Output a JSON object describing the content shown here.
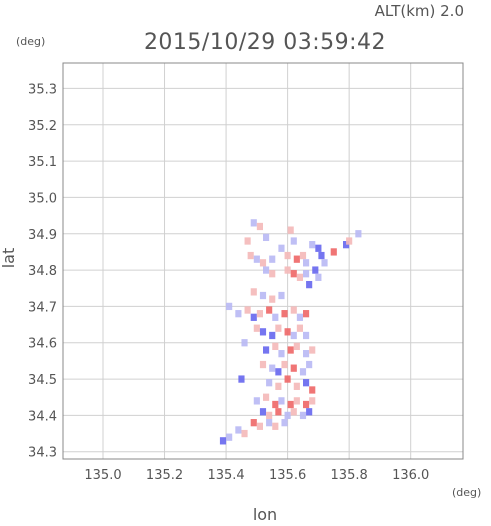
{
  "header": {
    "altitude_label": "ALT(km) 2.0",
    "timestamp": "2015/10/29 03:59:42"
  },
  "chart_data": {
    "type": "heatmap",
    "xlabel": "lon",
    "ylabel": "lat",
    "x_unit": "(deg)",
    "y_unit": "(deg)",
    "xlim": [
      134.87,
      136.17
    ],
    "ylim": [
      34.28,
      35.37
    ],
    "x_ticks": [
      135.0,
      135.2,
      135.4,
      135.6,
      135.8,
      136.0
    ],
    "y_ticks": [
      34.3,
      34.4,
      34.5,
      34.6,
      34.7,
      34.8,
      34.9,
      35.0,
      35.1,
      35.2,
      35.3
    ],
    "x_tick_labels": [
      "135.0",
      "135.2",
      "135.4",
      "135.6",
      "135.8",
      "136.0"
    ],
    "y_tick_labels": [
      "34.3",
      "34.4",
      "34.5",
      "34.6",
      "34.7",
      "34.8",
      "34.9",
      "35.0",
      "35.1",
      "35.2",
      "35.3"
    ],
    "grid": true,
    "colors": {
      "positive": "#ee6666",
      "negative": "#6666ee",
      "positive_light": "#f4b8b8",
      "negative_light": "#b8b8f4",
      "axes": "#888888",
      "grid": "#d0d0d0"
    },
    "cells": [
      {
        "lon": 135.49,
        "lat": 34.93,
        "v": -1
      },
      {
        "lon": 135.51,
        "lat": 34.92,
        "v": 1
      },
      {
        "lon": 135.53,
        "lat": 34.89,
        "v": -1
      },
      {
        "lon": 135.47,
        "lat": 34.88,
        "v": 1
      },
      {
        "lon": 135.61,
        "lat": 34.91,
        "v": 1
      },
      {
        "lon": 135.62,
        "lat": 34.88,
        "v": -1
      },
      {
        "lon": 135.58,
        "lat": 34.86,
        "v": -1
      },
      {
        "lon": 135.68,
        "lat": 34.87,
        "v": -1
      },
      {
        "lon": 135.7,
        "lat": 34.86,
        "v": -2
      },
      {
        "lon": 135.79,
        "lat": 34.87,
        "v": -2
      },
      {
        "lon": 135.8,
        "lat": 34.88,
        "v": 1
      },
      {
        "lon": 135.83,
        "lat": 34.9,
        "v": -1
      },
      {
        "lon": 135.48,
        "lat": 34.84,
        "v": 1
      },
      {
        "lon": 135.5,
        "lat": 34.83,
        "v": -1
      },
      {
        "lon": 135.52,
        "lat": 34.82,
        "v": 1
      },
      {
        "lon": 135.55,
        "lat": 34.83,
        "v": -1
      },
      {
        "lon": 135.6,
        "lat": 34.84,
        "v": 1
      },
      {
        "lon": 135.63,
        "lat": 34.83,
        "v": 2
      },
      {
        "lon": 135.65,
        "lat": 34.84,
        "v": 1
      },
      {
        "lon": 135.66,
        "lat": 34.82,
        "v": -1
      },
      {
        "lon": 135.71,
        "lat": 34.84,
        "v": -2
      },
      {
        "lon": 135.72,
        "lat": 34.82,
        "v": -1
      },
      {
        "lon": 135.75,
        "lat": 34.85,
        "v": 2
      },
      {
        "lon": 135.6,
        "lat": 34.8,
        "v": 1
      },
      {
        "lon": 135.62,
        "lat": 34.79,
        "v": 2
      },
      {
        "lon": 135.64,
        "lat": 34.78,
        "v": 1
      },
      {
        "lon": 135.66,
        "lat": 34.79,
        "v": -1
      },
      {
        "lon": 135.69,
        "lat": 34.8,
        "v": -2
      },
      {
        "lon": 135.7,
        "lat": 34.78,
        "v": -1
      },
      {
        "lon": 135.67,
        "lat": 34.76,
        "v": -2
      },
      {
        "lon": 135.53,
        "lat": 34.8,
        "v": -1
      },
      {
        "lon": 135.55,
        "lat": 34.79,
        "v": 1
      },
      {
        "lon": 135.49,
        "lat": 34.74,
        "v": 1
      },
      {
        "lon": 135.52,
        "lat": 34.73,
        "v": -1
      },
      {
        "lon": 135.55,
        "lat": 34.72,
        "v": 1
      },
      {
        "lon": 135.58,
        "lat": 34.73,
        "v": -1
      },
      {
        "lon": 135.41,
        "lat": 34.7,
        "v": -1
      },
      {
        "lon": 135.44,
        "lat": 34.68,
        "v": -1
      },
      {
        "lon": 135.47,
        "lat": 34.69,
        "v": 1
      },
      {
        "lon": 135.49,
        "lat": 34.67,
        "v": -2
      },
      {
        "lon": 135.51,
        "lat": 34.68,
        "v": 1
      },
      {
        "lon": 135.54,
        "lat": 34.69,
        "v": 2
      },
      {
        "lon": 135.56,
        "lat": 34.67,
        "v": -1
      },
      {
        "lon": 135.59,
        "lat": 34.68,
        "v": 2
      },
      {
        "lon": 135.62,
        "lat": 34.69,
        "v": 1
      },
      {
        "lon": 135.64,
        "lat": 34.67,
        "v": -1
      },
      {
        "lon": 135.66,
        "lat": 34.68,
        "v": 2
      },
      {
        "lon": 135.5,
        "lat": 34.64,
        "v": 1
      },
      {
        "lon": 135.52,
        "lat": 34.63,
        "v": -2
      },
      {
        "lon": 135.55,
        "lat": 34.62,
        "v": -2
      },
      {
        "lon": 135.57,
        "lat": 34.64,
        "v": 1
      },
      {
        "lon": 135.6,
        "lat": 34.63,
        "v": 2
      },
      {
        "lon": 135.62,
        "lat": 34.62,
        "v": -1
      },
      {
        "lon": 135.64,
        "lat": 34.64,
        "v": 1
      },
      {
        "lon": 135.66,
        "lat": 34.62,
        "v": -1
      },
      {
        "lon": 135.46,
        "lat": 34.6,
        "v": -1
      },
      {
        "lon": 135.53,
        "lat": 34.58,
        "v": -2
      },
      {
        "lon": 135.56,
        "lat": 34.59,
        "v": 1
      },
      {
        "lon": 135.58,
        "lat": 34.57,
        "v": -1
      },
      {
        "lon": 135.61,
        "lat": 34.58,
        "v": 2
      },
      {
        "lon": 135.63,
        "lat": 34.59,
        "v": 1
      },
      {
        "lon": 135.66,
        "lat": 34.57,
        "v": -1
      },
      {
        "lon": 135.68,
        "lat": 34.58,
        "v": 1
      },
      {
        "lon": 135.52,
        "lat": 34.54,
        "v": 1
      },
      {
        "lon": 135.55,
        "lat": 34.53,
        "v": -1
      },
      {
        "lon": 135.57,
        "lat": 34.52,
        "v": -2
      },
      {
        "lon": 135.59,
        "lat": 34.54,
        "v": 1
      },
      {
        "lon": 135.62,
        "lat": 34.53,
        "v": 2
      },
      {
        "lon": 135.65,
        "lat": 34.52,
        "v": -1
      },
      {
        "lon": 135.67,
        "lat": 34.54,
        "v": -1
      },
      {
        "lon": 135.45,
        "lat": 34.5,
        "v": -2
      },
      {
        "lon": 135.54,
        "lat": 34.49,
        "v": -1
      },
      {
        "lon": 135.57,
        "lat": 34.48,
        "v": 1
      },
      {
        "lon": 135.6,
        "lat": 34.5,
        "v": 2
      },
      {
        "lon": 135.63,
        "lat": 34.48,
        "v": 1
      },
      {
        "lon": 135.66,
        "lat": 34.49,
        "v": -2
      },
      {
        "lon": 135.68,
        "lat": 34.47,
        "v": 2
      },
      {
        "lon": 135.5,
        "lat": 34.44,
        "v": -1
      },
      {
        "lon": 135.53,
        "lat": 34.45,
        "v": 1
      },
      {
        "lon": 135.56,
        "lat": 34.43,
        "v": 2
      },
      {
        "lon": 135.58,
        "lat": 34.44,
        "v": -1
      },
      {
        "lon": 135.61,
        "lat": 34.43,
        "v": 2
      },
      {
        "lon": 135.63,
        "lat": 34.44,
        "v": 1
      },
      {
        "lon": 135.66,
        "lat": 34.43,
        "v": 2
      },
      {
        "lon": 135.68,
        "lat": 34.44,
        "v": 1
      },
      {
        "lon": 135.52,
        "lat": 34.41,
        "v": -2
      },
      {
        "lon": 135.54,
        "lat": 34.4,
        "v": 1
      },
      {
        "lon": 135.57,
        "lat": 34.41,
        "v": 2
      },
      {
        "lon": 135.6,
        "lat": 34.4,
        "v": -1
      },
      {
        "lon": 135.62,
        "lat": 34.41,
        "v": 1
      },
      {
        "lon": 135.65,
        "lat": 34.4,
        "v": -1
      },
      {
        "lon": 135.67,
        "lat": 34.41,
        "v": -2
      },
      {
        "lon": 135.49,
        "lat": 34.38,
        "v": 2
      },
      {
        "lon": 135.51,
        "lat": 34.37,
        "v": 1
      },
      {
        "lon": 135.54,
        "lat": 34.38,
        "v": -1
      },
      {
        "lon": 135.56,
        "lat": 34.37,
        "v": 1
      },
      {
        "lon": 135.59,
        "lat": 34.38,
        "v": -1
      },
      {
        "lon": 135.44,
        "lat": 34.36,
        "v": -1
      },
      {
        "lon": 135.46,
        "lat": 34.35,
        "v": 1
      },
      {
        "lon": 135.41,
        "lat": 34.34,
        "v": -1
      },
      {
        "lon": 135.39,
        "lat": 34.33,
        "v": -2
      }
    ]
  }
}
